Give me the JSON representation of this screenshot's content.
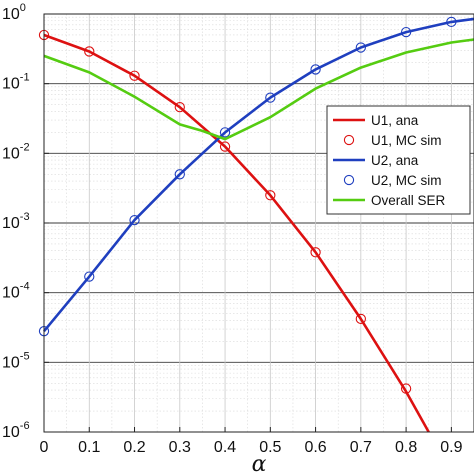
{
  "chart_data": {
    "type": "line",
    "title": "",
    "xlabel": "α",
    "ylabel": "",
    "xlim": [
      0,
      0.95
    ],
    "ylim": [
      1e-06,
      1
    ],
    "y_scale": "log",
    "grid": true,
    "minor_grid": true,
    "legend_position": "right",
    "x_ticks": [
      0,
      0.1,
      0.2,
      0.3,
      0.4,
      0.5,
      0.6,
      0.7,
      0.8,
      0.9
    ],
    "x_tick_labels": [
      "0",
      "0.1",
      "0.2",
      "0.3",
      "0.4",
      "0.5",
      "0.6",
      "0.7",
      "0.8",
      "0.9"
    ],
    "y_ticks": [
      {
        "value": 1e-06,
        "base": "10",
        "exp": "-6"
      },
      {
        "value": 1e-05,
        "base": "10",
        "exp": "-5"
      },
      {
        "value": 0.0001,
        "base": "10",
        "exp": "-4"
      },
      {
        "value": 0.001,
        "base": "10",
        "exp": "-3"
      },
      {
        "value": 0.01,
        "base": "10",
        "exp": "-2"
      },
      {
        "value": 0.1,
        "base": "10",
        "exp": "-1"
      },
      {
        "value": 1,
        "base": "10",
        "exp": "0"
      }
    ],
    "series": [
      {
        "name": "U1, ana",
        "style": "line",
        "color": "#dd1111",
        "x": [
          0,
          0.1,
          0.2,
          0.3,
          0.4,
          0.5,
          0.6,
          0.7,
          0.8,
          0.85
        ],
        "y": [
          0.5,
          0.29,
          0.13,
          0.046,
          0.0125,
          0.0025,
          0.00038,
          4.2e-05,
          3.8e-06,
          1e-06
        ]
      },
      {
        "name": "U1, MC sim",
        "style": "marker",
        "color": "#dd1111",
        "x": [
          0,
          0.1,
          0.2,
          0.3,
          0.4,
          0.5,
          0.6,
          0.7,
          0.8
        ],
        "y": [
          0.5,
          0.29,
          0.13,
          0.046,
          0.0125,
          0.0025,
          0.00038,
          4.2e-05,
          4.2e-06
        ]
      },
      {
        "name": "U2, ana",
        "style": "line",
        "color": "#1f3fbf",
        "x": [
          0,
          0.1,
          0.2,
          0.3,
          0.4,
          0.5,
          0.6,
          0.7,
          0.8,
          0.9,
          0.95
        ],
        "y": [
          2.8e-05,
          0.00017,
          0.0011,
          0.005,
          0.02,
          0.063,
          0.16,
          0.33,
          0.55,
          0.77,
          0.85
        ]
      },
      {
        "name": "U2, MC sim",
        "style": "marker",
        "color": "#1f3fbf",
        "x": [
          0,
          0.1,
          0.2,
          0.3,
          0.4,
          0.5,
          0.6,
          0.7,
          0.8,
          0.9
        ],
        "y": [
          2.8e-05,
          0.00017,
          0.0011,
          0.005,
          0.02,
          0.063,
          0.16,
          0.33,
          0.55,
          0.77
        ]
      },
      {
        "name": "Overall SER",
        "style": "line",
        "color": "#55cc11",
        "x": [
          0,
          0.1,
          0.2,
          0.3,
          0.35,
          0.4,
          0.5,
          0.6,
          0.7,
          0.8,
          0.9,
          0.95
        ],
        "y": [
          0.25,
          0.145,
          0.065,
          0.026,
          0.021,
          0.016,
          0.033,
          0.085,
          0.17,
          0.28,
          0.39,
          0.43
        ]
      }
    ]
  }
}
